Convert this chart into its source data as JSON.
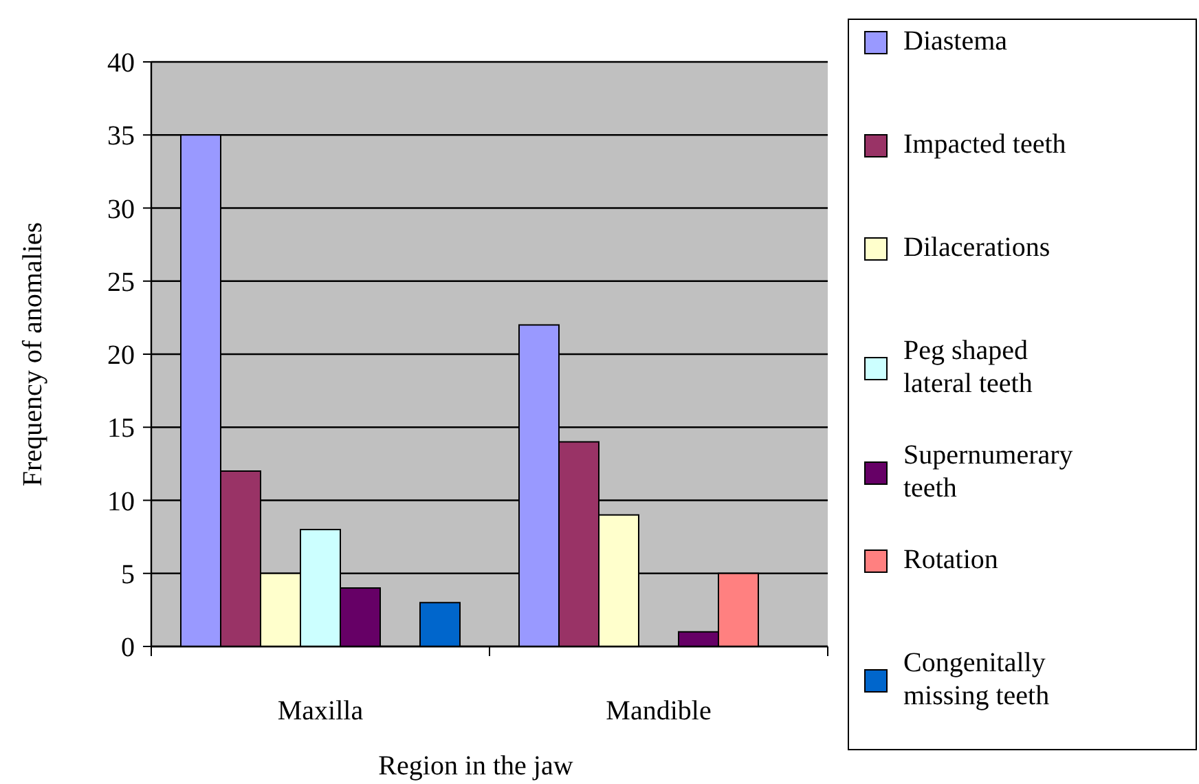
{
  "chart_data": {
    "type": "bar",
    "xlabel": "Region in the jaw",
    "ylabel": "Frequency of anomalies",
    "categories": [
      "Maxilla",
      "Mandible"
    ],
    "series": [
      {
        "name": "Diastema",
        "color": "#9999ff",
        "values": [
          35,
          22
        ]
      },
      {
        "name": "Impacted teeth",
        "color": "#993366",
        "values": [
          12,
          14
        ]
      },
      {
        "name": "Dilacerations",
        "color": "#ffffcc",
        "values": [
          5,
          9
        ]
      },
      {
        "name": "Peg shaped lateral teeth",
        "color": "#ccffff",
        "values": [
          8,
          0
        ]
      },
      {
        "name": "Supernumerary teeth",
        "color": "#660066",
        "values": [
          4,
          1
        ]
      },
      {
        "name": "Rotation",
        "color": "#ff8080",
        "values": [
          0,
          5
        ]
      },
      {
        "name": "Congenitally missing teeth",
        "color": "#0066cc",
        "values": [
          3,
          0
        ]
      }
    ],
    "ylim": [
      0,
      40
    ],
    "yticks": [
      0,
      5,
      10,
      15,
      20,
      25,
      30,
      35,
      40
    ],
    "grid": "y",
    "legend": "right"
  }
}
